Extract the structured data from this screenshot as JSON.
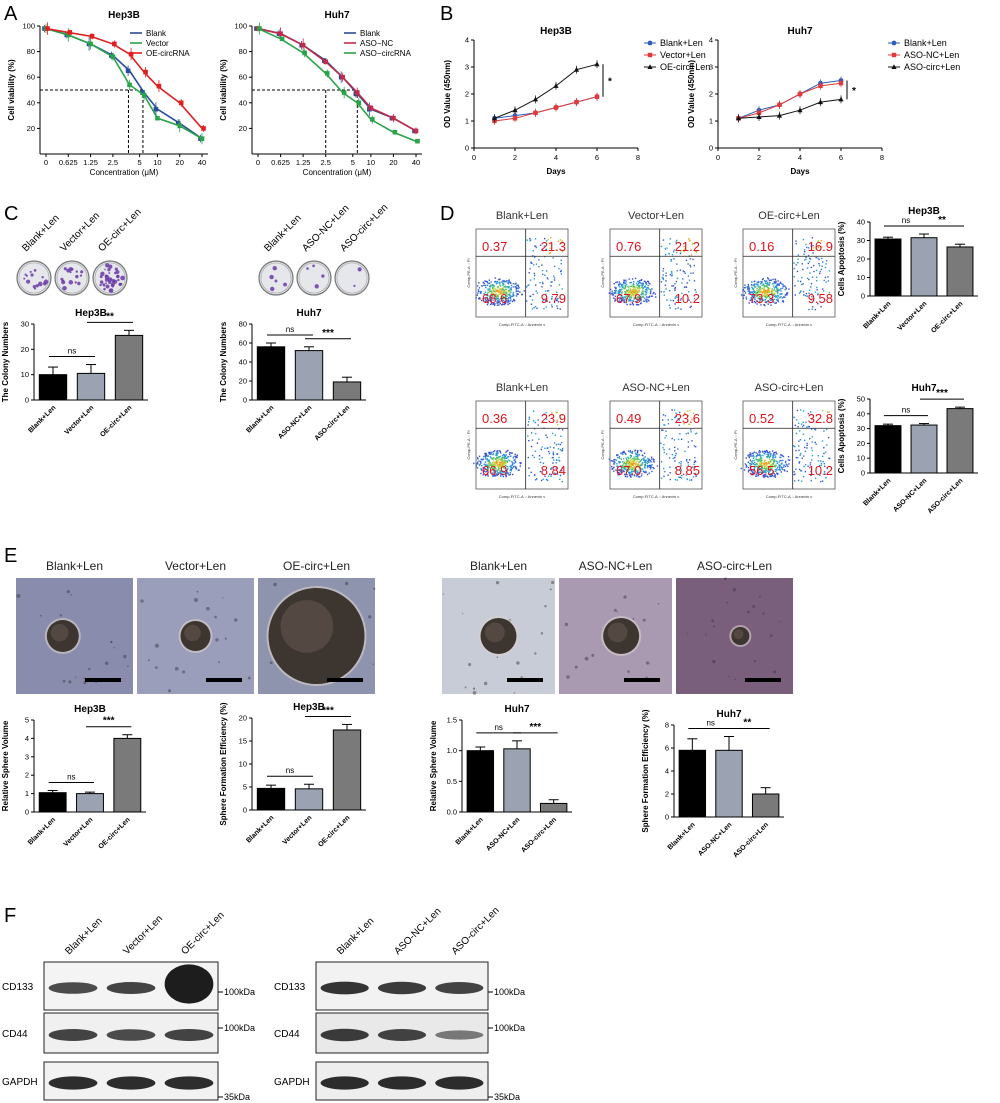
{
  "panels": {
    "a": "A",
    "b": "B",
    "c": "C",
    "d": "D",
    "e": "E",
    "f": "F"
  },
  "chart_data": [
    {
      "id": "A1",
      "type": "line",
      "title": "Hep3B",
      "xlabel": "Concentration (μM)",
      "ylabel": "Cell viability (%)",
      "xticks": [
        "0",
        "0.625",
        "1.25",
        "2.5",
        "5",
        "10",
        "20",
        "40"
      ],
      "ylim": [
        0,
        100
      ],
      "yticks": [
        "20",
        "40",
        "60",
        "80",
        "100"
      ],
      "legend": "top-right",
      "series": [
        {
          "name": "Blank",
          "color": "#2b4c9a",
          "values": [
            98,
            93,
            86,
            77,
            65,
            48,
            35,
            24,
            12
          ]
        },
        {
          "name": "Vector",
          "color": "#2aa44a",
          "values": [
            98,
            93,
            86,
            76,
            54,
            46,
            28,
            22,
            12
          ]
        },
        {
          "name": "OE-circRNA",
          "color": "#e02020",
          "values": [
            98,
            95,
            92,
            86,
            78,
            64,
            53,
            40,
            20
          ]
        }
      ],
      "x_values": [
        0,
        1,
        2,
        3,
        3.75,
        4.4,
        5,
        6,
        7
      ],
      "guides": [
        {
          "x": 3.7,
          "y": 50
        },
        {
          "x": 4.35,
          "y": 50
        }
      ]
    },
    {
      "id": "A2",
      "type": "line",
      "title": "Huh7",
      "xlabel": "Concentration (μM)",
      "ylabel": "Cell viability (%)",
      "xticks": [
        "0",
        "0.625",
        "1.25",
        "2.5",
        "5",
        "10",
        "20",
        "40"
      ],
      "ylim": [
        0,
        100
      ],
      "yticks": [
        "20",
        "40",
        "60",
        "80",
        "100"
      ],
      "legend": "top-right",
      "series": [
        {
          "name": "Blank",
          "color": "#2b4c9a",
          "values": [
            98,
            94,
            85,
            73,
            60,
            47,
            35,
            28,
            18
          ]
        },
        {
          "name": "ASO−NC",
          "color": "#c22a4a",
          "values": [
            98,
            94,
            85,
            72,
            60,
            48,
            36,
            28,
            18
          ]
        },
        {
          "name": "ASO−circRNA",
          "color": "#2aa44a",
          "values": [
            98,
            90,
            79,
            63,
            48,
            40,
            27,
            17,
            10
          ]
        }
      ],
      "x_values": [
        0,
        1,
        2,
        3,
        3.75,
        4.4,
        5,
        6,
        7
      ],
      "guides": [
        {
          "x": 3.0,
          "y": 50
        },
        {
          "x": 4.4,
          "y": 50
        }
      ]
    },
    {
      "id": "B1",
      "type": "line",
      "title": "Hep3B",
      "xlabel": "Days",
      "ylabel": "OD Value (450nm)",
      "x": [
        1,
        2,
        3,
        4,
        5,
        6
      ],
      "xlim": [
        0,
        8
      ],
      "xticks": [
        "0",
        "2",
        "4",
        "6",
        "8"
      ],
      "ylim": [
        0,
        4
      ],
      "yticks": [
        "0",
        "1",
        "2",
        "3",
        "4"
      ],
      "legend": "top-right",
      "significance": "*",
      "series": [
        {
          "name": "Blank+Len",
          "color": "#2b5fbf",
          "marker": "circle",
          "values": [
            1.1,
            1.2,
            1.3,
            1.5,
            1.7,
            1.9
          ]
        },
        {
          "name": "Vector+Len",
          "color": "#e23a3a",
          "marker": "square",
          "values": [
            1.0,
            1.1,
            1.3,
            1.5,
            1.7,
            1.9
          ]
        },
        {
          "name": "OE-circ+Len",
          "color": "#111111",
          "marker": "triangle",
          "values": [
            1.1,
            1.4,
            1.8,
            2.3,
            2.9,
            3.1
          ]
        }
      ]
    },
    {
      "id": "B2",
      "type": "line",
      "title": "Huh7",
      "xlabel": "Days",
      "ylabel": "OD Value (450nm)",
      "x": [
        1,
        2,
        3,
        4,
        5,
        6
      ],
      "xlim": [
        0,
        8
      ],
      "xticks": [
        "0",
        "2",
        "4",
        "6",
        "8"
      ],
      "ylim": [
        0,
        4
      ],
      "yticks": [
        "0",
        "1",
        "2",
        "3",
        "4"
      ],
      "legend": "top-right",
      "significance": "*",
      "series": [
        {
          "name": "Blank+Len",
          "color": "#2b5fbf",
          "marker": "circle",
          "values": [
            1.1,
            1.4,
            1.6,
            2.0,
            2.4,
            2.5
          ]
        },
        {
          "name": "ASO-NC+Len",
          "color": "#e23a3a",
          "marker": "square",
          "values": [
            1.1,
            1.3,
            1.6,
            2.0,
            2.3,
            2.4
          ]
        },
        {
          "name": "ASO-circ+Len",
          "color": "#111111",
          "marker": "triangle",
          "values": [
            1.1,
            1.15,
            1.2,
            1.4,
            1.7,
            1.8
          ]
        }
      ]
    },
    {
      "id": "C1",
      "type": "bar",
      "title": "Hep3B",
      "ylabel": "The Colony Numbers",
      "categories": [
        "Blank+Len",
        "Vector+Len",
        "OE-circ+Len"
      ],
      "values": [
        10,
        10.5,
        25.5
      ],
      "errors": [
        3,
        3.5,
        2
      ],
      "ylim": [
        0,
        30
      ],
      "yticks": [
        "0",
        "10",
        "20",
        "30"
      ],
      "colors": [
        "#000000",
        "#9ba3b2",
        "#7a7a7a"
      ],
      "sig": [
        {
          "label": "ns",
          "from": 0,
          "to": 1
        },
        {
          "label": "**",
          "from": 1,
          "to": 2
        }
      ]
    },
    {
      "id": "C2",
      "type": "bar",
      "title": "Huh7",
      "ylabel": "The Colony Numbers",
      "categories": [
        "Blank+Len",
        "ASO-NC+Len",
        "ASO-circ+Len"
      ],
      "values": [
        56,
        52,
        19
      ],
      "errors": [
        4,
        4,
        5
      ],
      "ylim": [
        0,
        80
      ],
      "yticks": [
        "0",
        "20",
        "40",
        "60",
        "80"
      ],
      "colors": [
        "#000000",
        "#9ba3b2",
        "#7a7a7a"
      ],
      "sig": [
        {
          "label": "ns",
          "from": 0,
          "to": 1
        },
        {
          "label": "***",
          "from": 1,
          "to": 2
        }
      ]
    },
    {
      "id": "D1",
      "type": "bar",
      "title": "Hep3B",
      "ylabel": "Cells Apoptosis (%)",
      "categories": [
        "Blank+Len",
        "Vector+Len",
        "OE-circ+Len"
      ],
      "values": [
        30.8,
        31.5,
        26.5
      ],
      "errors": [
        1,
        2,
        1.5
      ],
      "ylim": [
        0,
        40
      ],
      "yticks": [
        "0",
        "10",
        "20",
        "30",
        "40"
      ],
      "colors": [
        "#000000",
        "#9ba3b2",
        "#7a7a7a"
      ],
      "sig": [
        {
          "label": "ns",
          "from": 0,
          "to": 1
        },
        {
          "label": "**",
          "from": 1,
          "to": 2
        }
      ]
    },
    {
      "id": "D2",
      "type": "bar",
      "title": "Huh7",
      "ylabel": "Cells Apoptosis (%)",
      "categories": [
        "Blank+Len",
        "ASO-NC+Len",
        "ASO-circ+Len"
      ],
      "values": [
        32,
        32.4,
        43.5
      ],
      "errors": [
        1,
        1,
        1
      ],
      "ylim": [
        0,
        50
      ],
      "yticks": [
        "0",
        "10",
        "20",
        "30",
        "40",
        "50"
      ],
      "colors": [
        "#000000",
        "#9ba3b2",
        "#7a7a7a"
      ],
      "sig": [
        {
          "label": "ns",
          "from": 0,
          "to": 1
        },
        {
          "label": "***",
          "from": 1,
          "to": 2
        }
      ]
    },
    {
      "id": "E1",
      "type": "bar",
      "title": "Hep3B",
      "ylabel": "Relative Sphere Volume",
      "categories": [
        "Blank+Len",
        "Vector+Len",
        "OE-circ+Len"
      ],
      "values": [
        1.05,
        1.0,
        4.0
      ],
      "errors": [
        0.12,
        0.08,
        0.2
      ],
      "ylim": [
        0,
        5
      ],
      "yticks": [
        "0",
        "1",
        "2",
        "3",
        "4",
        "5"
      ],
      "colors": [
        "#000000",
        "#9ba3b2",
        "#7a7a7a"
      ],
      "sig": [
        {
          "label": "ns",
          "from": 0,
          "to": 1
        },
        {
          "label": "***",
          "from": 1,
          "to": 2
        }
      ]
    },
    {
      "id": "E2",
      "type": "bar",
      "title": "Hep3B",
      "ylabel": "Sphere Formation Efficiency (%)",
      "categories": [
        "Blank+Len",
        "Vector+Len",
        "OE-circ+Len"
      ],
      "values": [
        4.7,
        4.6,
        17.4
      ],
      "errors": [
        0.7,
        1.0,
        1.2
      ],
      "ylim": [
        0,
        20
      ],
      "yticks": [
        "0",
        "5",
        "10",
        "15",
        "20"
      ],
      "colors": [
        "#000000",
        "#9ba3b2",
        "#7a7a7a"
      ],
      "sig": [
        {
          "label": "ns",
          "from": 0,
          "to": 1
        },
        {
          "label": "***",
          "from": 1,
          "to": 2
        }
      ]
    },
    {
      "id": "E3",
      "type": "bar",
      "title": "Huh7",
      "ylabel": "Relative Sphere Volume",
      "categories": [
        "Blank+Len",
        "ASO-NC+Len",
        "ASO-circ+Len"
      ],
      "values": [
        1.0,
        1.03,
        0.14
      ],
      "errors": [
        0.06,
        0.13,
        0.06
      ],
      "ylim": [
        0,
        1.5
      ],
      "yticks": [
        "0.0",
        "0.5",
        "1.0",
        "1.5"
      ],
      "colors": [
        "#000000",
        "#9ba3b2",
        "#7a7a7a"
      ],
      "sig": [
        {
          "label": "ns",
          "from": 0,
          "to": 1
        },
        {
          "label": "***",
          "from": 1,
          "to": 2
        }
      ]
    },
    {
      "id": "E4",
      "type": "bar",
      "title": "Huh7",
      "ylabel": "Sphere Formation Efficiency (%)",
      "categories": [
        "Blank+Len",
        "ASO-NC+Len",
        "ASO-circ+Len"
      ],
      "values": [
        5.8,
        5.8,
        2.0
      ],
      "errors": [
        1.0,
        1.2,
        0.55
      ],
      "ylim": [
        0,
        8
      ],
      "yticks": [
        "0",
        "2",
        "4",
        "6",
        "8"
      ],
      "colors": [
        "#000000",
        "#9ba3b2",
        "#7a7a7a"
      ],
      "sig": [
        {
          "label": "ns",
          "from": 0,
          "to": 1
        },
        {
          "label": "**",
          "from": 1,
          "to": 2
        }
      ]
    }
  ],
  "colony_plates": {
    "left": [
      "Blank+Len",
      "Vector+Len",
      "OE-circ+Len"
    ],
    "right": [
      "Blank+Len",
      "ASO-NC+Len",
      "ASO-circ+Len"
    ]
  },
  "flow": {
    "axis_x": "Comp-FITC-A :: Annexin v",
    "axis_y": "Comp-PE-A :: PI",
    "plots": [
      {
        "title": "Blank+Len",
        "q1": "0.37",
        "q2": "21.3",
        "q3": "9.79",
        "q4": "68.6"
      },
      {
        "title": "Vector+Len",
        "q1": "0.76",
        "q2": "21.2",
        "q3": "10.2",
        "q4": "67.9"
      },
      {
        "title": "OE-circ+Len",
        "q1": "0.16",
        "q2": "16.9",
        "q3": "9.58",
        "q4": "73.3"
      },
      {
        "title": "Blank+Len",
        "q1": "0.36",
        "q2": "23.9",
        "q3": "8.84",
        "q4": "66.9"
      },
      {
        "title": "ASO-NC+Len",
        "q1": "0.49",
        "q2": "23.6",
        "q3": "8.85",
        "q4": "67.0"
      },
      {
        "title": "ASO-circ+Len",
        "q1": "0.52",
        "q2": "32.8",
        "q3": "10.2",
        "q4": "56.5"
      }
    ]
  },
  "sphere_images": {
    "titles": [
      "Blank+Len",
      "Vector+Len",
      "OE-circ+Len",
      "Blank+Len",
      "ASO-NC+Len",
      "ASO-circ+Len"
    ]
  },
  "western": {
    "left_lanes": [
      "Blank+Len",
      "Vector+Len",
      "OE-circ+Len"
    ],
    "right_lanes": [
      "Blank+Len",
      "ASO-NC+Len",
      "ASO-circ+Len"
    ],
    "proteins": [
      "CD133",
      "CD44",
      "GAPDH"
    ],
    "markers": {
      "m100": "100kDa",
      "m35": "35kDa"
    },
    "left_intensity": {
      "CD133": [
        0.7,
        0.75,
        1.0
      ],
      "CD44": [
        0.75,
        0.7,
        0.75
      ],
      "GAPDH": [
        0.9,
        0.9,
        0.9
      ]
    },
    "right_intensity": {
      "CD133": [
        0.85,
        0.8,
        0.75
      ],
      "CD44": [
        0.8,
        0.75,
        0.4
      ],
      "GAPDH": [
        0.9,
        0.9,
        0.9
      ]
    }
  }
}
